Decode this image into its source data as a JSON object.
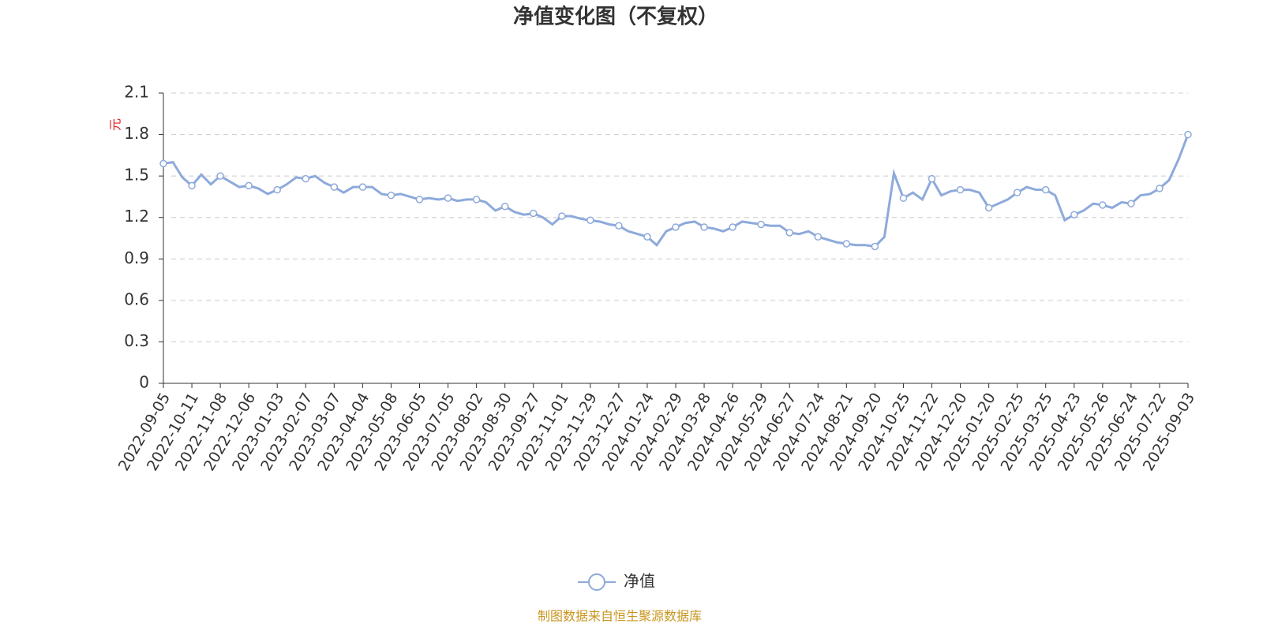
{
  "chart_data": {
    "type": "line",
    "title": "净值变化图（不复权）",
    "y_label": "元",
    "source": "制图数据来自恒生聚源数据库",
    "categories": [
      "2022-09-05",
      null,
      null,
      "2022-10-11",
      null,
      null,
      "2022-11-08",
      null,
      null,
      "2022-12-06",
      null,
      null,
      "2023-01-03",
      null,
      null,
      "2023-02-07",
      null,
      null,
      "2023-03-07",
      null,
      null,
      "2023-04-04",
      null,
      null,
      "2023-05-08",
      null,
      null,
      "2023-06-05",
      null,
      null,
      "2023-07-05",
      null,
      null,
      "2023-08-02",
      null,
      null,
      "2023-08-30",
      null,
      null,
      "2023-09-27",
      null,
      null,
      "2023-11-01",
      null,
      null,
      "2023-11-29",
      null,
      null,
      "2023-12-27",
      null,
      null,
      "2024-01-24",
      null,
      null,
      "2024-02-29",
      null,
      null,
      "2024-03-28",
      null,
      null,
      "2024-04-26",
      null,
      null,
      "2024-05-29",
      null,
      null,
      "2024-06-27",
      null,
      null,
      "2024-07-24",
      null,
      null,
      "2024-08-21",
      null,
      null,
      "2024-09-20",
      null,
      null,
      "2024-10-25",
      null,
      null,
      "2024-11-22",
      null,
      null,
      "2024-12-20",
      null,
      null,
      "2025-01-20",
      null,
      null,
      "2025-02-25",
      null,
      null,
      "2025-03-25",
      null,
      null,
      "2025-04-23",
      null,
      null,
      "2025-05-26",
      null,
      null,
      "2025-06-24",
      null,
      null,
      "2025-07-22",
      null,
      null,
      "2025-09-03"
    ],
    "series": [
      {
        "name": "净值",
        "color": "#8eaadb",
        "values": [
          1.59,
          1.6,
          1.49,
          1.43,
          1.51,
          1.44,
          1.5,
          1.46,
          1.42,
          1.43,
          1.41,
          1.37,
          1.4,
          1.44,
          1.49,
          1.48,
          1.5,
          1.45,
          1.42,
          1.38,
          1.42,
          1.42,
          1.42,
          1.37,
          1.36,
          1.37,
          1.35,
          1.33,
          1.34,
          1.33,
          1.34,
          1.32,
          1.33,
          1.33,
          1.31,
          1.25,
          1.28,
          1.24,
          1.22,
          1.23,
          1.2,
          1.15,
          1.21,
          1.21,
          1.19,
          1.18,
          1.17,
          1.15,
          1.14,
          1.1,
          1.08,
          1.06,
          1.0,
          1.1,
          1.13,
          1.16,
          1.17,
          1.13,
          1.12,
          1.1,
          1.13,
          1.17,
          1.16,
          1.15,
          1.14,
          1.14,
          1.09,
          1.08,
          1.1,
          1.06,
          1.04,
          1.02,
          1.01,
          1.0,
          1.0,
          0.99,
          1.06,
          1.52,
          1.34,
          1.38,
          1.33,
          1.48,
          1.36,
          1.39,
          1.4,
          1.4,
          1.38,
          1.27,
          1.3,
          1.33,
          1.38,
          1.42,
          1.4,
          1.4,
          1.36,
          1.18,
          1.22,
          1.25,
          1.3,
          1.29,
          1.27,
          1.31,
          1.3,
          1.36,
          1.37,
          1.41,
          1.47,
          1.62,
          1.8
        ]
      }
    ],
    "ylim": [
      0,
      2.1
    ],
    "yticks": [
      0,
      0.3,
      0.6,
      0.9,
      1.2,
      1.5,
      1.8,
      2.1
    ],
    "grid": true
  }
}
